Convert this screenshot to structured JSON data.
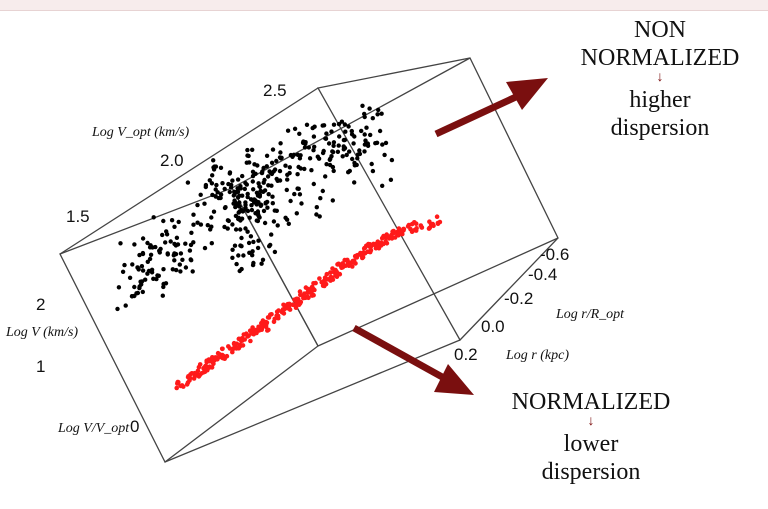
{
  "chart_data": {
    "type": "scatter",
    "title": "",
    "axes": {
      "log_v_opt": {
        "label": "Log V_opt (km/s)",
        "ticks": [
          "1.5",
          "2.0",
          "2.5"
        ]
      },
      "log_v": {
        "label": "Log V (km/s)",
        "ticks": [
          "1",
          "2"
        ]
      },
      "log_v_over_vopt": {
        "label": "Log V/V_opt",
        "ticks": [
          "0"
        ]
      },
      "log_r_over_ropt": {
        "label": "Log r/R_opt",
        "ticks": [
          "-0.6",
          "-0.4",
          "-0.2",
          "0.0"
        ]
      },
      "log_r": {
        "label": "Log r (kpc)",
        "ticks": [
          "0.2"
        ]
      }
    },
    "series": [
      {
        "name": "NON NORMALIZED",
        "color": "#000000",
        "values": [
          [
            0.05,
            0.08
          ],
          [
            0.07,
            0.15
          ],
          [
            0.1,
            0.1
          ],
          [
            0.12,
            0.2
          ],
          [
            0.15,
            0.3
          ],
          [
            0.18,
            0.25
          ],
          [
            0.2,
            0.4
          ],
          [
            0.22,
            0.35
          ],
          [
            0.25,
            0.5
          ],
          [
            0.27,
            0.45
          ],
          [
            0.3,
            0.55
          ],
          [
            0.32,
            0.6
          ],
          [
            0.33,
            0.4
          ],
          [
            0.35,
            0.65
          ],
          [
            0.37,
            0.5
          ],
          [
            0.38,
            0.7
          ],
          [
            0.4,
            0.6
          ],
          [
            0.42,
            0.75
          ],
          [
            0.43,
            0.55
          ],
          [
            0.45,
            0.8
          ],
          [
            0.47,
            0.7
          ],
          [
            0.48,
            0.6
          ],
          [
            0.5,
            0.85
          ],
          [
            0.52,
            0.75
          ],
          [
            0.53,
            0.65
          ],
          [
            0.55,
            0.9
          ],
          [
            0.57,
            0.8
          ],
          [
            0.58,
            0.7
          ],
          [
            0.6,
            0.85
          ],
          [
            0.62,
            0.9
          ],
          [
            0.63,
            0.75
          ],
          [
            0.65,
            0.95
          ],
          [
            0.67,
            0.85
          ],
          [
            0.68,
            0.8
          ],
          [
            0.7,
            0.9
          ],
          [
            0.72,
            0.95
          ],
          [
            0.74,
            0.85
          ],
          [
            0.76,
            0.9
          ],
          [
            0.8,
            1.0
          ],
          [
            0.85,
            0.95
          ],
          [
            0.9,
            1.0
          ],
          [
            0.3,
            0.3
          ],
          [
            0.4,
            0.4
          ],
          [
            0.5,
            0.5
          ],
          [
            0.55,
            0.6
          ],
          [
            0.6,
            0.65
          ],
          [
            0.45,
            0.45
          ],
          [
            0.35,
            0.35
          ]
        ]
      },
      {
        "name": "NORMALIZED",
        "color": "#ff1a1a",
        "values": [
          [
            0.02,
            0.05
          ],
          [
            0.05,
            0.08
          ],
          [
            0.08,
            0.12
          ],
          [
            0.1,
            0.15
          ],
          [
            0.13,
            0.18
          ],
          [
            0.15,
            0.22
          ],
          [
            0.18,
            0.25
          ],
          [
            0.2,
            0.28
          ],
          [
            0.23,
            0.32
          ],
          [
            0.25,
            0.35
          ],
          [
            0.28,
            0.38
          ],
          [
            0.3,
            0.42
          ],
          [
            0.33,
            0.45
          ],
          [
            0.35,
            0.48
          ],
          [
            0.38,
            0.52
          ],
          [
            0.4,
            0.55
          ],
          [
            0.43,
            0.58
          ],
          [
            0.45,
            0.62
          ],
          [
            0.48,
            0.65
          ],
          [
            0.5,
            0.68
          ],
          [
            0.53,
            0.72
          ],
          [
            0.55,
            0.75
          ],
          [
            0.58,
            0.78
          ],
          [
            0.6,
            0.82
          ],
          [
            0.63,
            0.85
          ],
          [
            0.65,
            0.88
          ],
          [
            0.68,
            0.9
          ],
          [
            0.7,
            0.93
          ],
          [
            0.73,
            0.95
          ],
          [
            0.75,
            0.97
          ],
          [
            0.8,
            1.0
          ],
          [
            0.85,
            1.02
          ]
        ]
      }
    ],
    "grid": false,
    "legend": "none"
  },
  "annotations": {
    "non_normalized": {
      "line1": "NON",
      "line2": "NORMALIZED",
      "line3": "higher",
      "line4": "dispersion"
    },
    "normalized": {
      "line1": "NORMALIZED",
      "line2": "lower",
      "line3": "dispersion"
    },
    "arrow_color": "#7a0f0f",
    "small_arrow_glyph": "↓"
  }
}
